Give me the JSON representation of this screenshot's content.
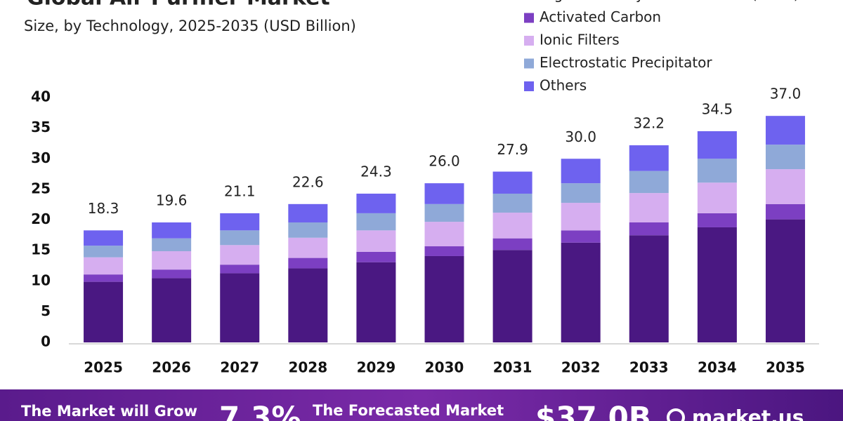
{
  "chart_data": {
    "type": "stacked_bar",
    "title": "Global Air Purifier Market",
    "subtitle": "Size, by Technology, 2025-2035 (USD Billion)",
    "categories": [
      "2025",
      "2026",
      "2027",
      "2028",
      "2029",
      "2030",
      "2031",
      "2032",
      "2033",
      "2034",
      "2035"
    ],
    "series": [
      {
        "name": "High Efficiency Particulate Air (HEPA)",
        "color": "#4a1882",
        "values": [
          9.9,
          10.5,
          11.3,
          12.1,
          13.1,
          14.1,
          15.1,
          16.3,
          17.5,
          18.8,
          20.1
        ]
      },
      {
        "name": "Activated Carbon",
        "color": "#7c3fc2",
        "values": [
          1.2,
          1.4,
          1.4,
          1.7,
          1.7,
          1.6,
          1.9,
          2.0,
          2.1,
          2.3,
          2.5
        ]
      },
      {
        "name": "Ionic Filters",
        "color": "#d6aef0",
        "values": [
          2.8,
          3.0,
          3.2,
          3.3,
          3.5,
          4.0,
          4.2,
          4.5,
          4.8,
          5.0,
          5.7
        ]
      },
      {
        "name": "Electrostatic Precipitator",
        "color": "#8fa9d8",
        "values": [
          1.9,
          2.1,
          2.4,
          2.5,
          2.8,
          2.9,
          3.1,
          3.2,
          3.6,
          3.9,
          4.0
        ]
      },
      {
        "name": "Others",
        "color": "#6e62ef",
        "values": [
          2.5,
          2.6,
          2.8,
          3.0,
          3.2,
          3.4,
          3.6,
          4.0,
          4.2,
          4.5,
          4.7
        ]
      }
    ],
    "total_labels": [
      "18.3",
      "19.6",
      "21.1",
      "22.6",
      "24.3",
      "26.0",
      "27.9",
      "30.0",
      "32.2",
      "34.5",
      "37.0"
    ],
    "ylim": [
      0,
      40
    ],
    "yticks": [
      0,
      5,
      10,
      15,
      20,
      25,
      30,
      35,
      40
    ],
    "grid": false
  },
  "footer": {
    "growth_text": "The Market will Grow",
    "cagr": "7.3%",
    "forecast_text": "The Forecasted Market",
    "forecast_value": "$37.0B",
    "brand": "market.us"
  }
}
